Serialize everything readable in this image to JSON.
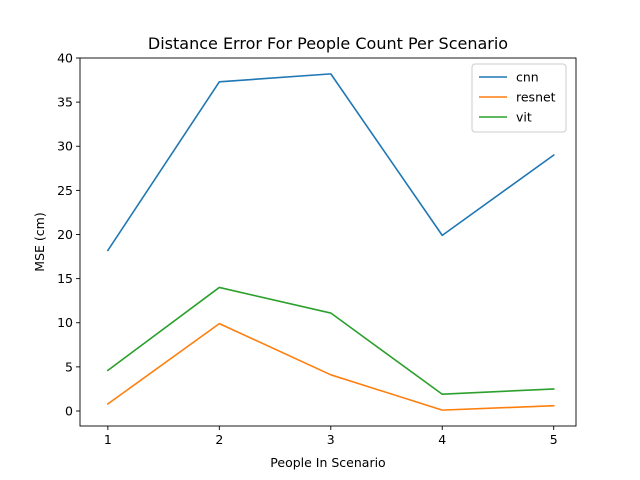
{
  "chart_data": {
    "type": "line",
    "title": "Distance Error For People Count Per Scenario",
    "xlabel": "People In Scenario",
    "ylabel": "MSE (cm)",
    "x": [
      1,
      2,
      3,
      4,
      5
    ],
    "xlim": [
      0.75,
      5.2
    ],
    "ylim": [
      -1.7,
      40
    ],
    "xticks": [
      1,
      2,
      3,
      4,
      5
    ],
    "yticks": [
      0,
      5,
      10,
      15,
      20,
      25,
      30,
      35,
      40
    ],
    "grid": false,
    "legend_position": "top-right",
    "series": [
      {
        "name": "cnn",
        "color": "#1f77b4",
        "values": [
          18.2,
          37.3,
          38.2,
          19.9,
          29.0
        ]
      },
      {
        "name": "resnet",
        "color": "#ff7f0e",
        "values": [
          0.8,
          9.9,
          4.1,
          0.1,
          0.6
        ]
      },
      {
        "name": "vit",
        "color": "#2ca02c",
        "values": [
          4.6,
          14.0,
          11.1,
          1.9,
          2.5
        ]
      }
    ]
  }
}
